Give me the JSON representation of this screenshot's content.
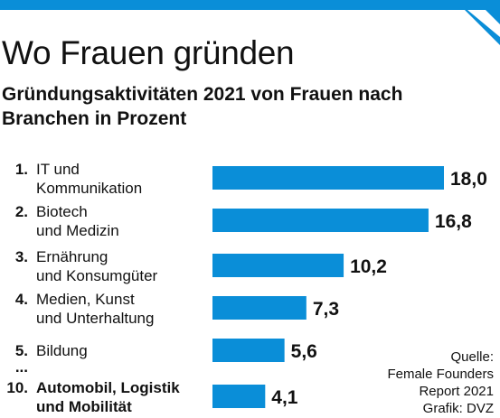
{
  "header": {
    "title": "Wo Frauen gründen",
    "subtitle": "Gründungsaktivitäten 2021 von Frauen nach Branchen in Prozent"
  },
  "colors": {
    "accent": "#0a8ed8",
    "text": "#111111"
  },
  "chart_data": {
    "type": "bar",
    "orientation": "horizontal",
    "title": "Wo Frauen gründen",
    "subtitle": "Gründungsaktivitäten 2021 von Frauen nach Branchen in Prozent",
    "categories": [
      {
        "rank": "1.",
        "lines": [
          "IT und",
          "Kommunikation"
        ],
        "bold": false,
        "value": 18.0,
        "label": "18,0"
      },
      {
        "rank": "2.",
        "lines": [
          "Biotech",
          "und Medizin"
        ],
        "bold": false,
        "value": 16.8,
        "label": "16,8"
      },
      {
        "rank": "3.",
        "lines": [
          "Ernährung",
          "und Konsumgüter"
        ],
        "bold": false,
        "value": 10.2,
        "label": "10,2"
      },
      {
        "rank": "4.",
        "lines": [
          "Medien, Kunst",
          "und Unterhaltung"
        ],
        "bold": false,
        "value": 7.3,
        "label": "7,3"
      },
      {
        "rank": "5.",
        "lines": [
          "Bildung"
        ],
        "bold": false,
        "value": 5.6,
        "label": "5,6"
      },
      {
        "rank": "10.",
        "lines": [
          "Automobil, Logistik",
          "und Mobilität"
        ],
        "bold": true,
        "value": 4.1,
        "label": "4,1"
      }
    ],
    "ellipsis": "...",
    "xlim": [
      0,
      18
    ],
    "grid": false,
    "legend": "none"
  },
  "source": {
    "lines": [
      "Quelle:",
      "Female Founders",
      "Report 2021",
      "Grafik: DVZ"
    ]
  }
}
